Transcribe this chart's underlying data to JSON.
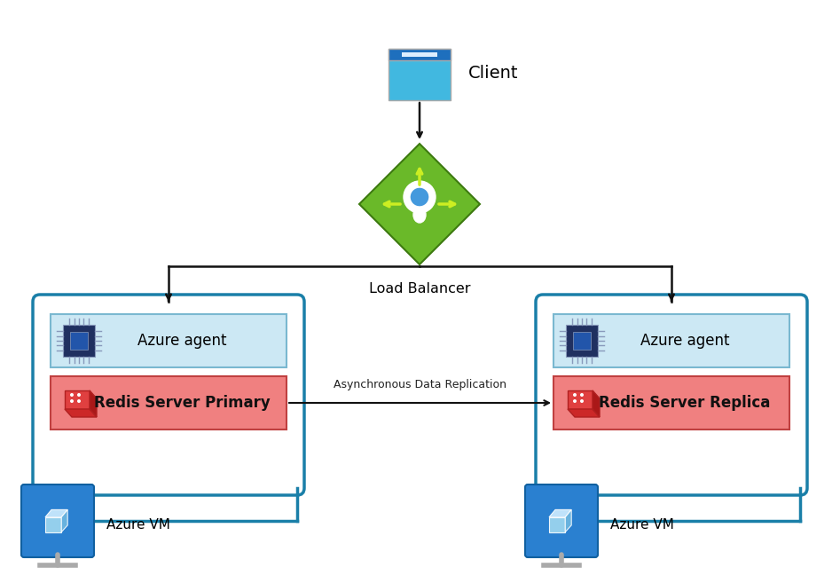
{
  "bg_color": "#ffffff",
  "client_label": "Client",
  "lb_label": "Load Balancer",
  "left_agent_label": "Azure agent",
  "right_agent_label": "Azure agent",
  "left_redis_label": "Redis Server Primary",
  "right_redis_label": "Redis Server Replica",
  "replication_label": "Asynchronous Data Replication",
  "left_vm_label": "Azure VM",
  "right_vm_label": "Azure VM",
  "box_border_color": "#1a7fa8",
  "box_fill_color": "#ffffff",
  "agent_bg": "#cce8f4",
  "agent_border": "#7ab8d0",
  "redis_bg": "#f08080",
  "redis_border": "#c04040",
  "arrow_color": "#111111",
  "client_top_color": "#1e6fbd",
  "client_bot_color": "#41b8e0",
  "lb_green": "#6ab929",
  "lb_dark_green": "#3d7a10",
  "vm_blue_top": "#2a80d0",
  "vm_blue_bot": "#1565c0",
  "vm_border": "#1060a0",
  "chip_outer": "#203060",
  "chip_inner": "#2255aa",
  "chip_pin": "#8899bb"
}
